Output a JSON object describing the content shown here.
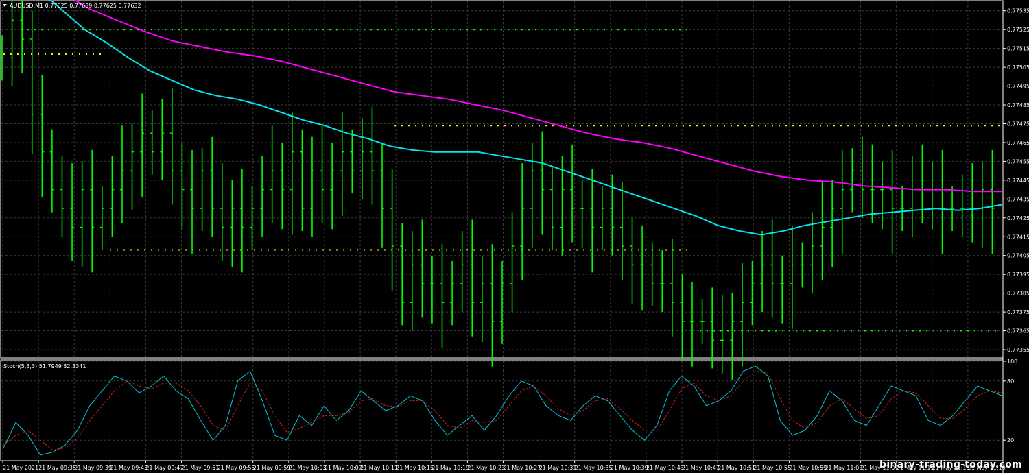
{
  "main_pane": {
    "header": "AUDUSD,M1  0.77625 0.77639 0.77625 0.77632",
    "colors": {
      "bull": "#00ff00",
      "bear": "#00ff00",
      "fast_ma": "#00e5ee",
      "slow_ma": "#ff00ff",
      "level": "#ffff00",
      "level2": "#00ff00"
    }
  },
  "stoch_pane": {
    "header": "Stoch(5,3,3) 51.7949 32.3341"
  },
  "watermark": "binary-trading-today.com",
  "chart_data": [
    {
      "type": "ohlc",
      "symbol": "AUDUSD",
      "timeframe": "M1",
      "y_ticks": [
        "0.77535",
        "0.77525",
        "0.77515",
        "0.77505",
        "0.77495",
        "0.77485",
        "0.77475",
        "0.77465",
        "0.77455",
        "0.77445",
        "0.77435",
        "0.77425",
        "0.77415",
        "0.77405",
        "0.77395",
        "0.77385",
        "0.77375",
        "0.77365",
        "0.77355"
      ],
      "ylim": [
        0.77351,
        0.7754
      ],
      "x_ticks": [
        "21 May 2021",
        "21 May 09:35",
        "21 May 09:39",
        "21 May 09:43",
        "21 May 09:47",
        "21 May 09:51",
        "21 May 09:55",
        "21 May 09:59",
        "21 May 10:03",
        "21 May 10:07",
        "21 May 10:11",
        "21 May 10:15",
        "21 May 10:19",
        "21 May 10:23",
        "21 May 10:27",
        "21 May 10:31",
        "21 May 10:35",
        "21 May 10:39",
        "21 May 10:43",
        "21 May 10:47",
        "21 May 10:51",
        "21 May 10:55",
        "21 May 10:59",
        "21 May 11:03",
        "21 May 11:07",
        "21 May 11:11",
        "21 May 11:15",
        "21 May 11:19"
      ],
      "close": [
        0.7751,
        0.7753,
        0.7752,
        0.7748,
        0.7746,
        0.7744,
        0.7743,
        0.7742,
        0.7744,
        0.7742,
        0.7743,
        0.7744,
        0.7745,
        0.7746,
        0.7747,
        0.7746,
        0.7747,
        0.7745,
        0.7744,
        0.7743,
        0.7745,
        0.7743,
        0.7742,
        0.7743,
        0.7742,
        0.7743,
        0.7744,
        0.7745,
        0.7744,
        0.7746,
        0.7743,
        0.7745,
        0.7744,
        0.7745,
        0.7746,
        0.7745,
        0.7746,
        0.7745,
        0.7743,
        0.7741,
        0.7738,
        0.774,
        0.7739,
        0.7739,
        0.7738,
        0.7739,
        0.774,
        0.7738,
        0.7739,
        0.7737,
        0.7739,
        0.7741,
        0.7743,
        0.7745,
        0.7744,
        0.7742,
        0.7744,
        0.7743,
        0.7743,
        0.7742,
        0.7743,
        0.7742,
        0.7741,
        0.774,
        0.774,
        0.7739,
        0.7739,
        0.7738,
        0.7737,
        0.7737,
        0.7737,
        0.7736,
        0.7736,
        0.7737,
        0.7738,
        0.7739,
        0.774,
        0.7739,
        0.7739,
        0.774,
        0.774,
        0.7741,
        0.7742,
        0.7743,
        0.7744,
        0.7745,
        0.7744,
        0.7744,
        0.7744,
        0.7743,
        0.7743,
        0.7744,
        0.7744,
        0.7744,
        0.7743,
        0.7743,
        0.7743,
        0.7743,
        0.7744,
        0.7743
      ],
      "fast_ma": [
        0.77545,
        0.77535,
        0.77525,
        0.77518,
        0.7751,
        0.77503,
        0.77498,
        0.77493,
        0.7749,
        0.77488,
        0.77485,
        0.77481,
        0.77477,
        0.77474,
        0.7747,
        0.77467,
        0.77463,
        0.77461,
        0.7746,
        0.7746,
        0.7746,
        0.77458,
        0.77456,
        0.77454,
        0.7745,
        0.77446,
        0.77442,
        0.77438,
        0.77434,
        0.7743,
        0.77426,
        0.77421,
        0.77418,
        0.77416,
        0.77418,
        0.77421,
        0.77423,
        0.77425,
        0.77427,
        0.77428,
        0.77429,
        0.7743,
        0.77429,
        0.7743,
        0.77432
      ],
      "slow_ma": [
        0.77545,
        0.77536,
        0.7753,
        0.77524,
        0.77519,
        0.77516,
        0.77513,
        0.77511,
        0.77508,
        0.77504,
        0.775,
        0.77496,
        0.77492,
        0.7749,
        0.77488,
        0.77485,
        0.77482,
        0.77478,
        0.77474,
        0.7747,
        0.77467,
        0.77465,
        0.77462,
        0.77458,
        0.77454,
        0.7745,
        0.77447,
        0.77445,
        0.77444,
        0.77442,
        0.77441,
        0.7744,
        0.7744,
        0.77439,
        0.77439
      ],
      "levels": [
        0.77525,
        0.77512,
        0.77474,
        0.77408,
        0.77365
      ]
    },
    {
      "type": "line",
      "indicator": "Stoch(5,3,3)",
      "y_ticks": [
        "100",
        "80",
        "20"
      ],
      "ylim": [
        0,
        100
      ],
      "series": [
        {
          "values": [
            12,
            38,
            25,
            5,
            8,
            15,
            30,
            55,
            70,
            85,
            80,
            68,
            75,
            85,
            70,
            62,
            40,
            20,
            35,
            80,
            90,
            60,
            25,
            20,
            45,
            35,
            55,
            40,
            50,
            70,
            60,
            50,
            55,
            65,
            60,
            40,
            25,
            35,
            45,
            30,
            45,
            65,
            80,
            75,
            55,
            45,
            40,
            55,
            65,
            60,
            45,
            30,
            20,
            35,
            70,
            85,
            75,
            55,
            60,
            70,
            90,
            95,
            85,
            40,
            25,
            30,
            45,
            70,
            60,
            40,
            35,
            55,
            75,
            70,
            65,
            40,
            35,
            45,
            60,
            75,
            70,
            65
          ]
        },
        {
          "values": [
            15,
            25,
            30,
            20,
            10,
            12,
            22,
            40,
            55,
            70,
            80,
            75,
            72,
            78,
            78,
            70,
            55,
            35,
            30,
            55,
            78,
            70,
            45,
            28,
            32,
            38,
            45,
            45,
            48,
            60,
            62,
            55,
            54,
            60,
            60,
            50,
            35,
            32,
            40,
            38,
            40,
            55,
            70,
            75,
            65,
            52,
            45,
            50,
            60,
            62,
            52,
            40,
            30,
            30,
            50,
            72,
            78,
            65,
            60,
            65,
            80,
            90,
            88,
            62,
            40,
            32,
            38,
            55,
            62,
            52,
            42,
            45,
            62,
            70,
            68,
            55,
            42,
            42,
            52,
            65,
            70,
            68
          ]
        }
      ]
    }
  ]
}
